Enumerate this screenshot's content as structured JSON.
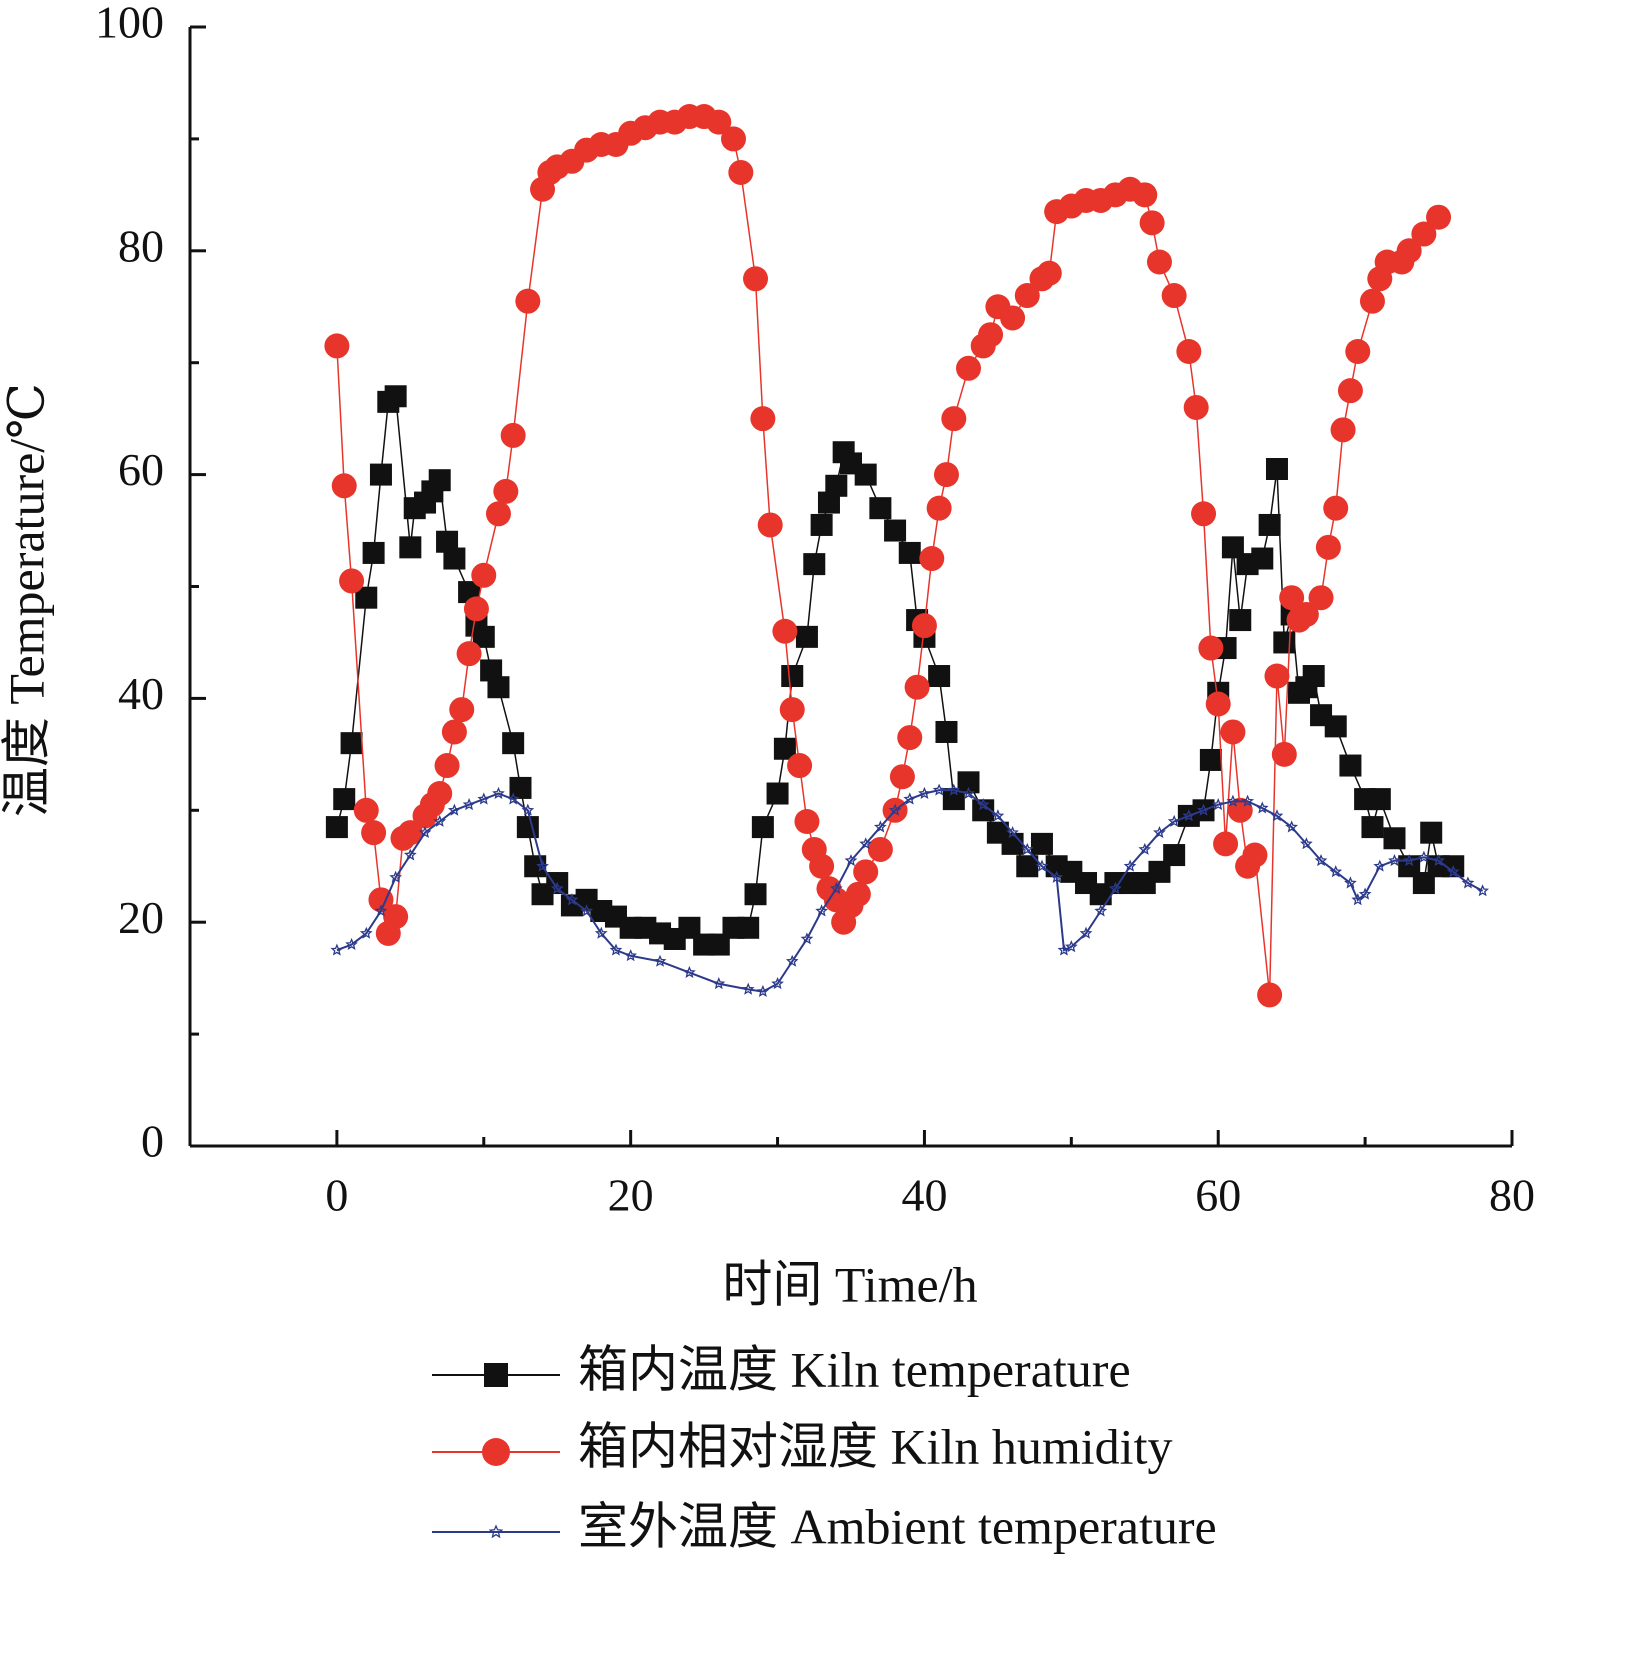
{
  "chart_data": {
    "type": "line",
    "xlabel": "时间  Time/h",
    "ylabel": "温度  Temperature/℃",
    "xlim": [
      -10,
      80
    ],
    "xticks": [
      0,
      20,
      40,
      60,
      80
    ],
    "ylim": [
      0,
      100
    ],
    "yticks": [
      0,
      20,
      40,
      60,
      80,
      100
    ],
    "legend": "bottom",
    "series": [
      {
        "name": "箱内温度 Kiln temperature",
        "color": "#111111",
        "marker": "square",
        "x": [
          0,
          0.5,
          1,
          2,
          2.5,
          3,
          3.5,
          4,
          5,
          5.3,
          6,
          6.5,
          7,
          7.5,
          8,
          9,
          9.5,
          10,
          10.5,
          11,
          12,
          12.5,
          13,
          13.5,
          14,
          15,
          16,
          17,
          18,
          19,
          20,
          21,
          22,
          23,
          24,
          25,
          26,
          27,
          28,
          28.5,
          29,
          30,
          30.5,
          31,
          32,
          32.5,
          33,
          33.5,
          34,
          34.5,
          35,
          36,
          37,
          38,
          39,
          39.5,
          40,
          41,
          41.5,
          42,
          43,
          44,
          45,
          46,
          47,
          48,
          49,
          50,
          51,
          52,
          53,
          54,
          55,
          56,
          57,
          58,
          59,
          59.5,
          60,
          60.5,
          61,
          61.5,
          62,
          63,
          63.5,
          64,
          64.5,
          65,
          65.5,
          66,
          66.5,
          67,
          68,
          69,
          70,
          70.5,
          71,
          72,
          73,
          74,
          74.5,
          75,
          76
        ],
        "values": [
          28.5,
          31,
          36,
          49,
          53,
          60,
          66.5,
          67,
          53.5,
          57,
          57.5,
          58.5,
          59.5,
          54,
          52.5,
          49.5,
          46.5,
          45.5,
          42.5,
          41,
          36,
          32,
          28.5,
          25,
          22.5,
          23.5,
          21.5,
          22,
          21,
          20.5,
          19.5,
          19.5,
          19,
          18.5,
          19.5,
          18,
          18,
          19.5,
          19.5,
          22.5,
          28.5,
          31.5,
          35.5,
          42,
          45.5,
          52,
          55.5,
          57.5,
          59,
          62,
          61,
          60,
          57,
          55,
          53,
          47,
          45.5,
          42,
          37,
          31,
          32.5,
          30,
          28,
          27,
          25,
          27,
          25,
          24.5,
          23.5,
          22.5,
          23.5,
          23.5,
          23.5,
          24.5,
          26,
          29.5,
          30,
          34.5,
          40.5,
          44.5,
          53.5,
          47,
          52,
          52.5,
          55.5,
          60.5,
          45,
          47.5,
          40.5,
          41,
          42,
          38.5,
          37.5,
          34,
          31,
          28.5,
          31,
          27.5,
          25,
          23.5,
          28,
          25,
          25
        ]
      },
      {
        "name": "箱内相对湿度 Kiln humidity",
        "color": "#e8352b",
        "marker": "circle",
        "x": [
          0,
          0.5,
          1,
          2,
          2.5,
          3,
          3.5,
          4,
          4.5,
          5,
          6,
          6.5,
          7,
          7.5,
          8,
          8.5,
          9,
          9.5,
          10,
          11,
          11.5,
          12,
          13,
          14,
          14.5,
          15,
          16,
          17,
          18,
          19,
          20,
          21,
          22,
          23,
          24,
          25,
          26,
          27,
          27.5,
          28.5,
          29,
          29.5,
          30.5,
          31,
          31.5,
          32,
          32.5,
          33,
          33.5,
          34,
          34.5,
          35,
          35.5,
          36,
          37,
          38,
          38.5,
          39,
          39.5,
          40,
          40.5,
          41,
          41.5,
          42,
          43,
          44,
          44.5,
          45,
          46,
          47,
          48,
          48.5,
          49,
          50,
          51,
          52,
          53,
          54,
          55,
          55.5,
          56,
          57,
          58,
          58.5,
          59,
          59.5,
          60,
          60.5,
          61,
          61.5,
          62,
          62.5,
          63.5,
          64,
          64.5,
          65,
          65.5,
          66,
          67,
          67.5,
          68,
          68.5,
          69,
          69.5,
          70.5,
          71,
          71.5,
          72.5,
          73,
          74,
          75
        ],
        "values": [
          71.5,
          59,
          50.5,
          30,
          28,
          22,
          19,
          20.5,
          27.5,
          28,
          29.5,
          30.5,
          31.5,
          34,
          37,
          39,
          44,
          48,
          51,
          56.5,
          58.5,
          63.5,
          75.5,
          85.5,
          87,
          87.5,
          88,
          89,
          89.5,
          89.5,
          90.5,
          91,
          91.5,
          91.5,
          92,
          92,
          91.5,
          90,
          87,
          77.5,
          65,
          55.5,
          46,
          39,
          34,
          29,
          26.5,
          25,
          23,
          22,
          20,
          21.5,
          22.5,
          24.5,
          26.5,
          30,
          33,
          36.5,
          41,
          46.5,
          52.5,
          57,
          60,
          65,
          69.5,
          71.5,
          72.5,
          75,
          74,
          76,
          77.5,
          78,
          83.5,
          84,
          84.5,
          84.5,
          85,
          85.5,
          85,
          82.5,
          79,
          76,
          71,
          66,
          56.5,
          44.5,
          39.5,
          27,
          37,
          30,
          25,
          26,
          13.5,
          42,
          35,
          49,
          47,
          47.5,
          49,
          53.5,
          57,
          64,
          67.5,
          71,
          75.5,
          77.5,
          79,
          79,
          80,
          81.5,
          83
        ]
      },
      {
        "name": "室外温度 Ambient temperature",
        "color": "#2c3a8c",
        "marker": "star",
        "x": [
          0,
          1,
          2,
          3,
          4,
          5,
          6,
          7,
          8,
          9,
          10,
          11,
          12,
          13,
          14,
          15,
          16,
          17,
          18,
          19,
          20,
          22,
          24,
          26,
          28,
          29,
          30,
          31,
          32,
          33,
          34,
          35,
          36,
          37,
          38,
          39,
          40,
          41,
          42,
          43,
          44,
          45,
          46,
          47,
          48,
          49,
          49.5,
          50,
          51,
          52,
          53,
          54,
          55,
          56,
          57,
          58,
          59,
          60,
          61,
          62,
          63,
          64,
          65,
          66,
          67,
          68,
          69,
          69.5,
          70,
          71,
          72,
          73,
          74,
          75,
          76,
          77,
          78
        ],
        "values": [
          17.5,
          18,
          19,
          21,
          24,
          26,
          28,
          29,
          30,
          30.5,
          31,
          31.5,
          31,
          30,
          25,
          23,
          22,
          21,
          19,
          17.5,
          17,
          16.5,
          15.5,
          14.5,
          14,
          13.8,
          14.5,
          16.5,
          18.5,
          21,
          23,
          25.5,
          27,
          28.5,
          30,
          31,
          31.5,
          31.8,
          31.8,
          31.5,
          30.5,
          29.5,
          28,
          26.5,
          25,
          24,
          17.5,
          17.8,
          19,
          21,
          23,
          25,
          26.5,
          28,
          29,
          29.5,
          30,
          30.5,
          30.8,
          30.8,
          30.2,
          29.5,
          28.5,
          27,
          25.5,
          24.5,
          23.5,
          22,
          22.5,
          25,
          25.5,
          25.5,
          25.8,
          25.5,
          24.5,
          23.5,
          22.8
        ]
      }
    ]
  }
}
